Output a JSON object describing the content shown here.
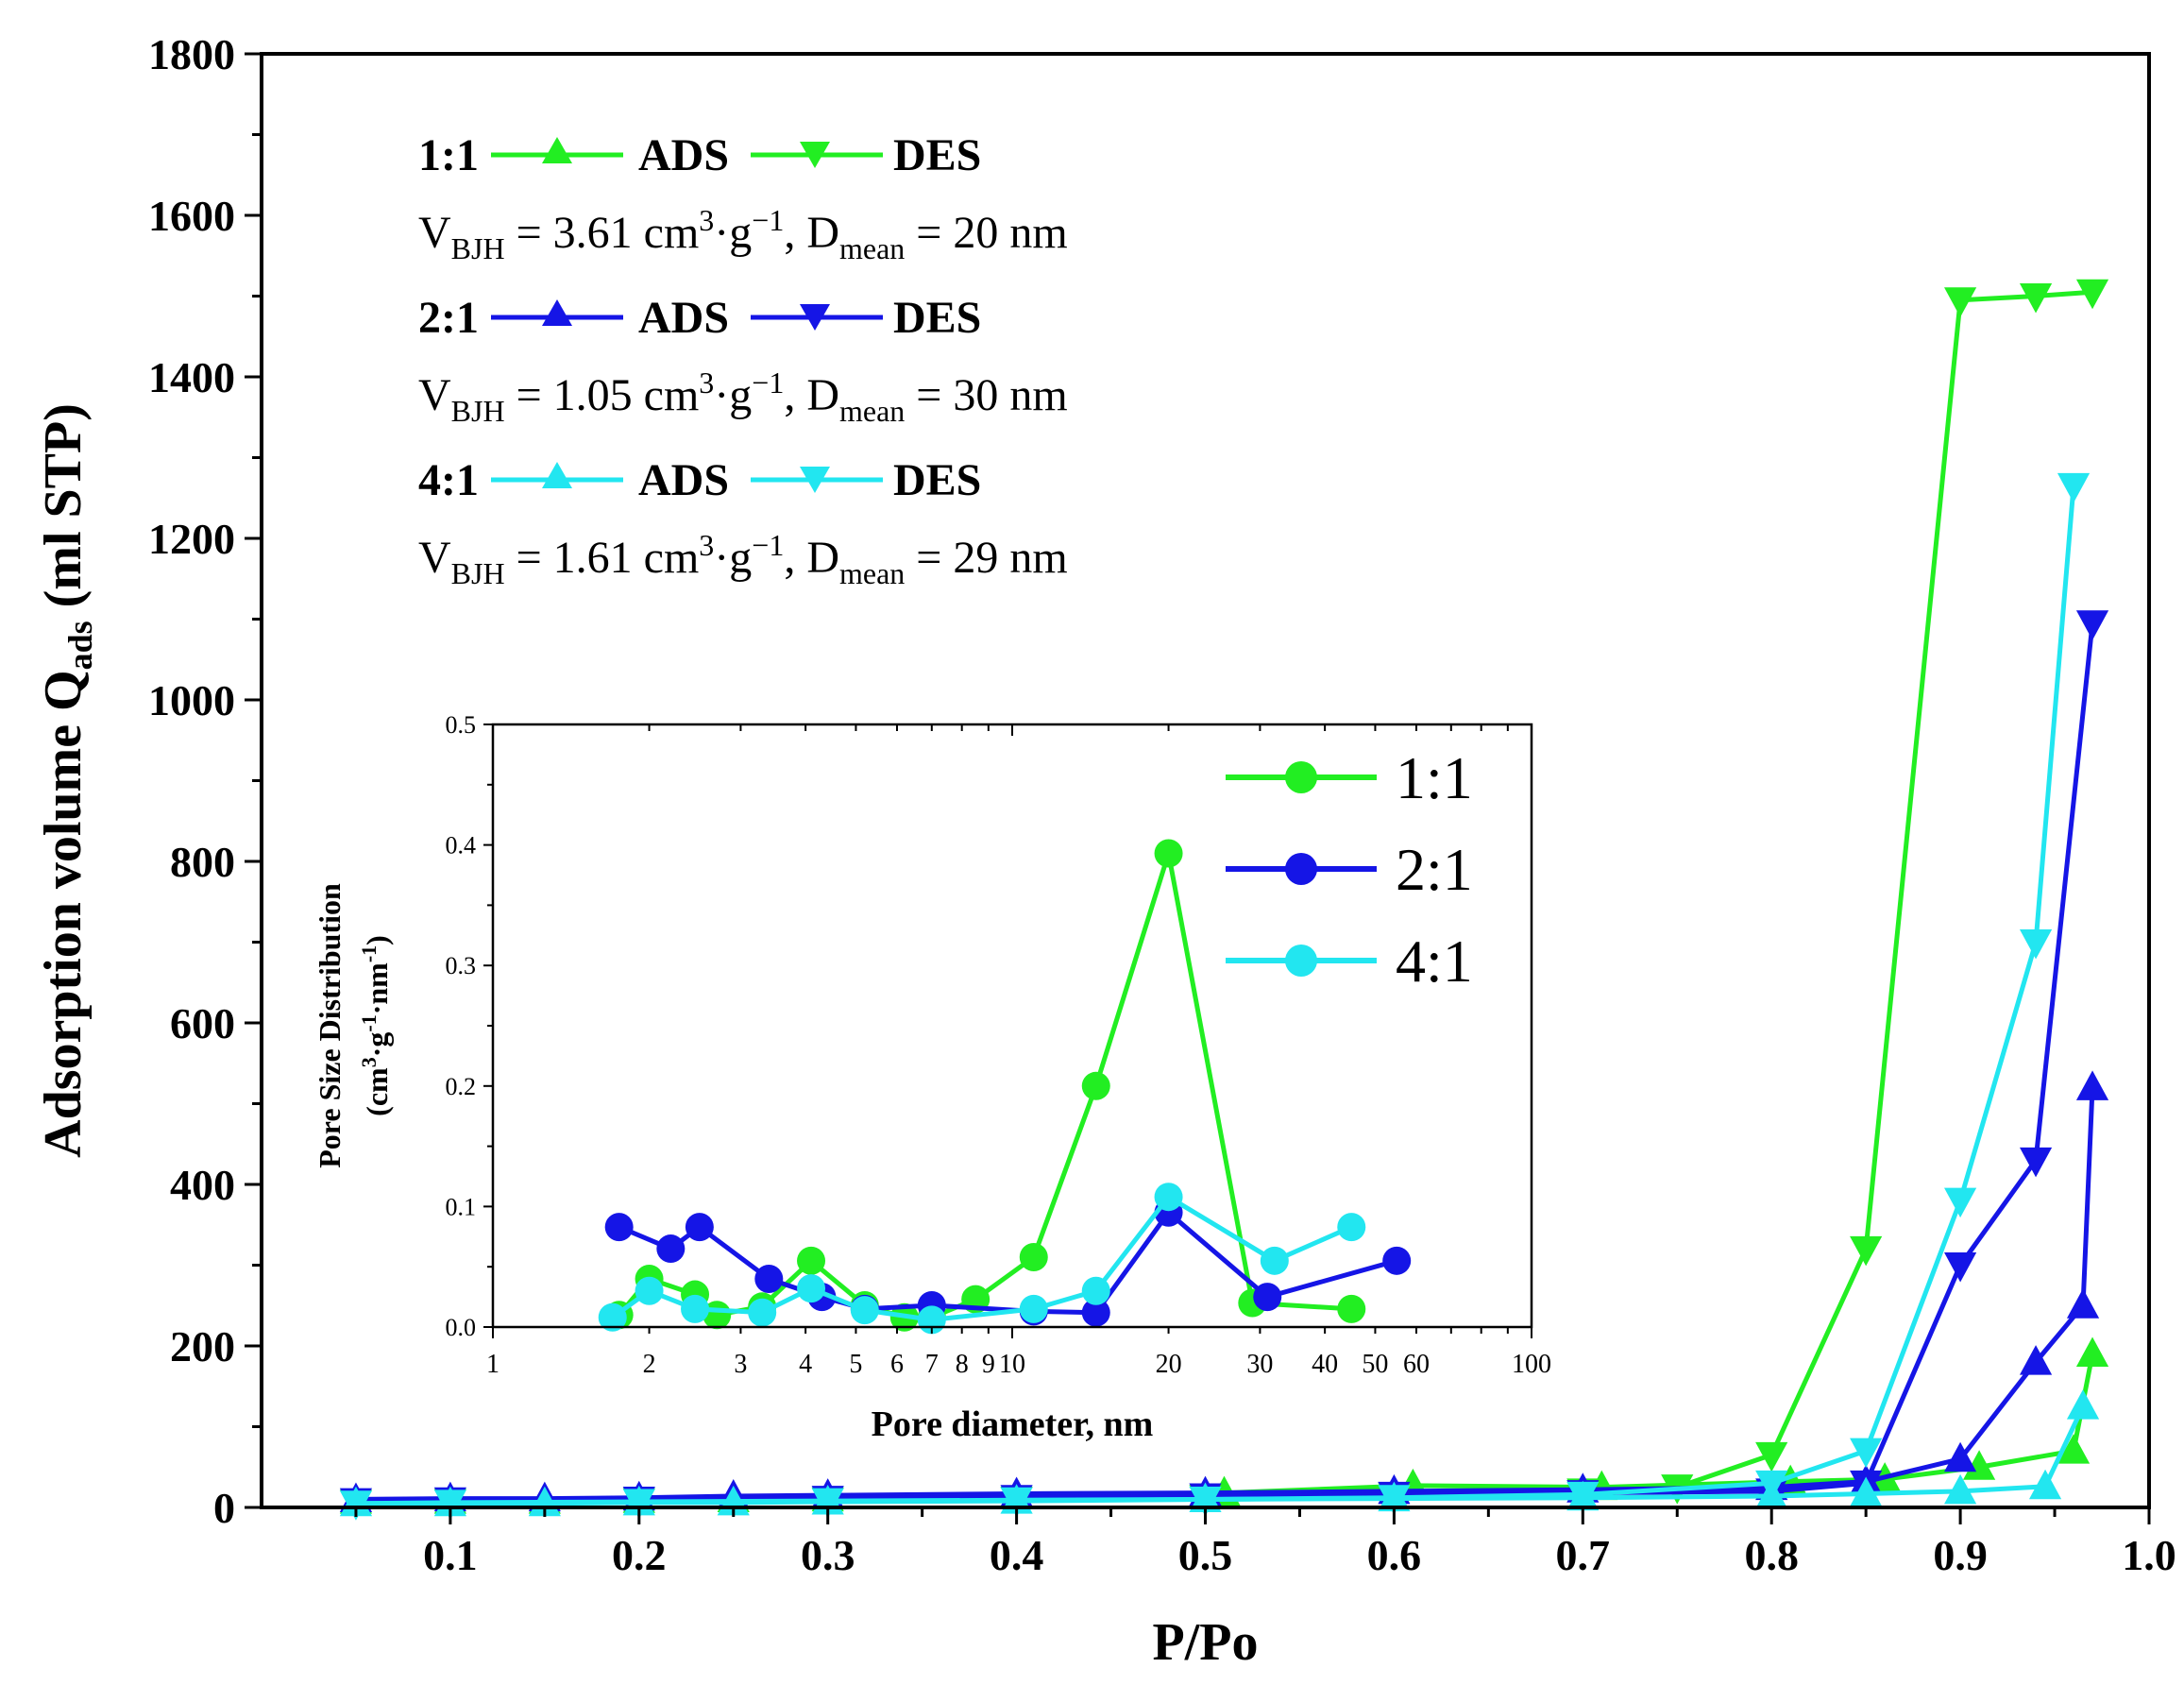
{
  "chart_data": [
    {
      "type": "line",
      "title": "",
      "xlabel": "P/Po",
      "ylabel_main": "Adsorption volume Q",
      "ylabel_sub": "ads",
      "ylabel_tail": " (ml STP)",
      "xlim": [
        0.0,
        1.0
      ],
      "ylim": [
        0,
        1800
      ],
      "xticks": [
        0.1,
        0.2,
        0.3,
        0.4,
        0.5,
        0.6,
        0.7,
        0.8,
        0.9,
        1.0
      ],
      "xtick_labels": [
        "0.1",
        "0.2",
        "0.3",
        "0.4",
        "0.5",
        "0.6",
        "0.7",
        "0.8",
        "0.9",
        "1.0"
      ],
      "yticks": [
        0,
        200,
        400,
        600,
        800,
        1000,
        1200,
        1400,
        1600,
        1800
      ],
      "ytick_labels": [
        "0",
        "200",
        "400",
        "600",
        "800",
        "1000",
        "1200",
        "1400",
        "1600",
        "1800"
      ],
      "legend_position": "top-left",
      "series": [
        {
          "name": "1:1 ADS",
          "sample": "1:1",
          "branch": "ADS",
          "color": "#22ee22",
          "marker": "triangle-up",
          "x": [
            0.05,
            0.1,
            0.15,
            0.2,
            0.25,
            0.3,
            0.4,
            0.51,
            0.61,
            0.71,
            0.81,
            0.86,
            0.91,
            0.96,
            0.97
          ],
          "y": [
            8,
            8,
            8,
            9,
            10,
            11,
            14,
            18,
            27,
            25,
            32,
            35,
            50,
            70,
            190
          ]
        },
        {
          "name": "1:1 DES",
          "sample": "1:1",
          "branch": "DES",
          "color": "#22ee22",
          "marker": "triangle-down",
          "x": [
            0.97,
            0.94,
            0.9,
            0.85,
            0.8,
            0.75,
            0.7,
            0.6,
            0.5,
            0.4,
            0.3,
            0.2,
            0.1,
            0.05
          ],
          "y": [
            1505,
            1500,
            1495,
            320,
            65,
            25,
            20,
            15,
            12,
            10,
            9,
            8,
            7,
            6
          ]
        },
        {
          "name": "2:1 ADS",
          "sample": "2:1",
          "branch": "ADS",
          "color": "#1515e6",
          "marker": "triangle-up",
          "x": [
            0.05,
            0.1,
            0.15,
            0.2,
            0.25,
            0.3,
            0.4,
            0.5,
            0.6,
            0.7,
            0.8,
            0.85,
            0.9,
            0.94,
            0.965,
            0.97
          ],
          "y": [
            10,
            11,
            11,
            12,
            14,
            15,
            17,
            18,
            20,
            22,
            25,
            32,
            60,
            180,
            250,
            520
          ]
        },
        {
          "name": "2:1 DES",
          "sample": "2:1",
          "branch": "DES",
          "color": "#1515e6",
          "marker": "triangle-down",
          "x": [
            0.97,
            0.94,
            0.9,
            0.85,
            0.8,
            0.7,
            0.6,
            0.5,
            0.4,
            0.3,
            0.2,
            0.1,
            0.05
          ],
          "y": [
            1095,
            430,
            300,
            30,
            20,
            18,
            16,
            14,
            12,
            11,
            10,
            9,
            8
          ]
        },
        {
          "name": "4:1 ADS",
          "sample": "4:1",
          "branch": "ADS",
          "color": "#22e6f0",
          "marker": "triangle-up",
          "x": [
            0.05,
            0.1,
            0.15,
            0.2,
            0.25,
            0.3,
            0.4,
            0.5,
            0.6,
            0.7,
            0.8,
            0.85,
            0.9,
            0.945,
            0.965
          ],
          "y": [
            5,
            5,
            5,
            6,
            6,
            7,
            8,
            10,
            11,
            12,
            14,
            17,
            20,
            26,
            125
          ]
        },
        {
          "name": "4:1 DES",
          "sample": "4:1",
          "branch": "DES",
          "color": "#22e6f0",
          "marker": "triangle-down",
          "x": [
            0.96,
            0.94,
            0.9,
            0.85,
            0.8,
            0.7,
            0.6,
            0.5,
            0.4,
            0.3,
            0.2,
            0.1,
            0.05
          ],
          "y": [
            1265,
            700,
            380,
            70,
            30,
            16,
            12,
            10,
            9,
            8,
            7,
            6,
            5
          ]
        }
      ],
      "annotations": [
        {
          "sample": "1:1",
          "v_label": "V",
          "v_sub": "BJH",
          "v_value": " = 3.61 cm",
          "v_sup": "3",
          "v_mid": "·g",
          "v_sup2": "−1",
          "d_prefix": ", D",
          "d_sub": "mean",
          "d_value": " = 20 nm"
        },
        {
          "sample": "2:1",
          "v_label": "V",
          "v_sub": "BJH",
          "v_value": " = 1.05 cm",
          "v_sup": "3",
          "v_mid": "·g",
          "v_sup2": "−1",
          "d_prefix": ", D",
          "d_sub": "mean",
          "d_value": " = 30 nm"
        },
        {
          "sample": "4:1",
          "v_label": "V",
          "v_sub": "BJH",
          "v_value": " = 1.61 cm",
          "v_sup": "3",
          "v_mid": "·g",
          "v_sup2": "−1",
          "d_prefix": ", D",
          "d_sub": "mean",
          "d_value": " = 29 nm"
        }
      ]
    },
    {
      "type": "line",
      "title": "",
      "xlabel": "Pore diameter, nm",
      "ylabel_line1": "Pore Size Distribution",
      "ylabel_line2_a": "(cm",
      "ylabel_line2_sup1": "3",
      "ylabel_line2_b": "·g",
      "ylabel_line2_sup2": "-1",
      "ylabel_line2_c": "·nm",
      "ylabel_line2_sup3": "-1",
      "ylabel_line2_d": ")",
      "xscale": "log",
      "xlim": [
        1,
        100
      ],
      "ylim": [
        0.0,
        0.5
      ],
      "xticks": [
        1,
        2,
        3,
        4,
        5,
        6,
        7,
        8,
        9,
        10,
        20,
        30,
        40,
        50,
        60,
        100
      ],
      "xtick_labels": [
        "1",
        "2",
        "3",
        "4",
        "5",
        "6",
        "7",
        "8",
        "9",
        "10",
        "20",
        "30",
        "40",
        "50",
        "60",
        "100"
      ],
      "yticks": [
        0.0,
        0.1,
        0.2,
        0.3,
        0.4,
        0.5
      ],
      "ytick_labels": [
        "0.0",
        "0.1",
        "0.2",
        "0.3",
        "0.4",
        "0.5"
      ],
      "legend_position": "top-right",
      "series": [
        {
          "name": "1:1",
          "color": "#22ee22",
          "marker": "circle",
          "x": [
            1.75,
            2.0,
            2.45,
            2.7,
            3.3,
            4.1,
            5.2,
            6.2,
            7.0,
            8.5,
            11.0,
            14.5,
            20.0,
            29.0,
            45.0
          ],
          "y": [
            0.01,
            0.04,
            0.027,
            0.01,
            0.017,
            0.055,
            0.018,
            0.008,
            0.008,
            0.023,
            0.058,
            0.2,
            0.393,
            0.02,
            0.015
          ]
        },
        {
          "name": "2:1",
          "color": "#1515e6",
          "marker": "circle",
          "x": [
            1.75,
            2.2,
            2.5,
            3.4,
            4.3,
            5.2,
            7.0,
            11.0,
            14.5,
            20.0,
            31.0,
            55.0
          ],
          "y": [
            0.083,
            0.065,
            0.083,
            0.04,
            0.025,
            0.015,
            0.018,
            0.013,
            0.012,
            0.095,
            0.025,
            0.055
          ]
        },
        {
          "name": "4:1",
          "color": "#22e6f0",
          "marker": "circle",
          "x": [
            1.7,
            2.0,
            2.45,
            3.3,
            4.1,
            5.2,
            7.0,
            11.0,
            14.5,
            20.0,
            32.0,
            45.0
          ],
          "y": [
            0.008,
            0.03,
            0.015,
            0.012,
            0.032,
            0.014,
            0.006,
            0.015,
            0.03,
            0.108,
            0.055,
            0.083
          ]
        }
      ]
    }
  ]
}
